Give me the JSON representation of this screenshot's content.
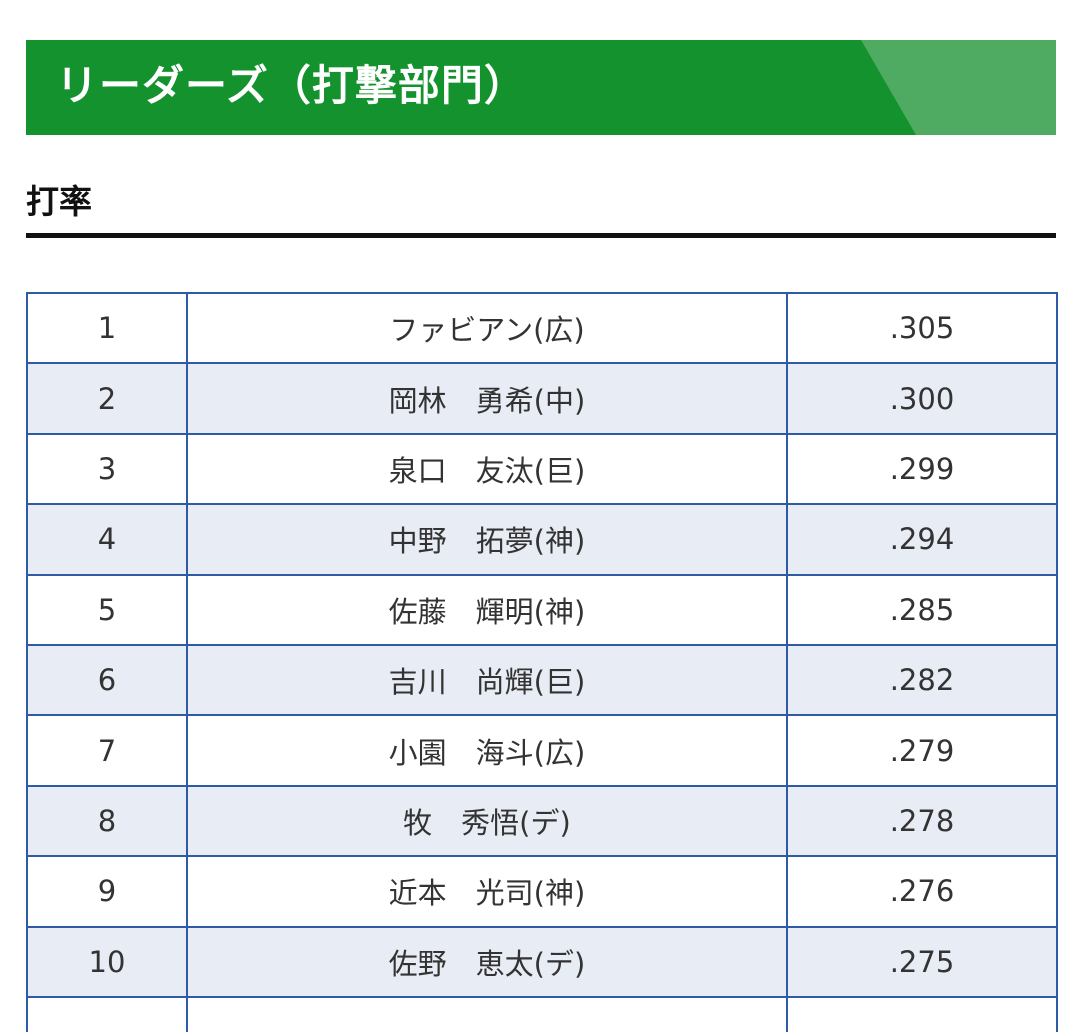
{
  "banner": {
    "title": "リーダーズ（打撃部門）",
    "color": "#13922e",
    "accent_color": "#4faa62"
  },
  "section": {
    "heading": "打率"
  },
  "table": {
    "rows": [
      {
        "rank": "1",
        "player": "ファビアン(広)",
        "avg": ".305"
      },
      {
        "rank": "2",
        "player": "岡林　勇希(中)",
        "avg": ".300"
      },
      {
        "rank": "3",
        "player": "泉口　友汰(巨)",
        "avg": ".299"
      },
      {
        "rank": "4",
        "player": "中野　拓夢(神)",
        "avg": ".294"
      },
      {
        "rank": "5",
        "player": "佐藤　輝明(神)",
        "avg": ".285"
      },
      {
        "rank": "6",
        "player": "吉川　尚輝(巨)",
        "avg": ".282"
      },
      {
        "rank": "7",
        "player": "小園　海斗(広)",
        "avg": ".279"
      },
      {
        "rank": "8",
        "player": "牧　秀悟(デ)",
        "avg": ".278"
      },
      {
        "rank": "9",
        "player": "近本　光司(神)",
        "avg": ".276"
      },
      {
        "rank": "10",
        "player": "佐野　恵太(デ)",
        "avg": ".275"
      },
      {
        "rank": "",
        "player": "",
        "avg": ""
      }
    ],
    "border_color": "#2e5aa6",
    "alt_row_color": "#e8ecf4"
  }
}
